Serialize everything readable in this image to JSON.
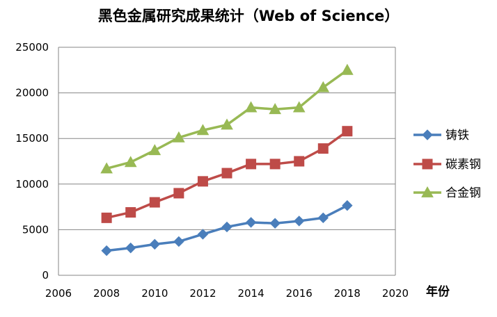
{
  "chart_data": {
    "type": "line",
    "title": "黑色金属研究成果统计（Web of Science）",
    "xlabel": "年份",
    "ylabel": "",
    "xlim": [
      2006,
      2020
    ],
    "ylim": [
      0,
      25000
    ],
    "x_ticks": [
      2006,
      2008,
      2010,
      2012,
      2014,
      2016,
      2018,
      2020
    ],
    "y_ticks": [
      0,
      5000,
      10000,
      15000,
      20000,
      25000
    ],
    "grid": "horizontal",
    "legend_position": "right",
    "x": [
      2008,
      2009,
      2010,
      2011,
      2012,
      2013,
      2014,
      2015,
      2016,
      2017,
      2018
    ],
    "series": [
      {
        "name": "铸铁",
        "color": "#4a7ebb",
        "marker": "diamond",
        "values": [
          2700,
          3000,
          3400,
          3700,
          4500,
          5300,
          5800,
          5700,
          5950,
          6300,
          7650
        ]
      },
      {
        "name": "碳素钢",
        "color": "#be4b48",
        "marker": "square",
        "values": [
          6300,
          6900,
          8000,
          9000,
          10300,
          11200,
          12200,
          12200,
          12500,
          13900,
          15800
        ]
      },
      {
        "name": "合金钢",
        "color": "#98b954",
        "marker": "triangle",
        "values": [
          11700,
          12400,
          13700,
          15100,
          15900,
          16500,
          18400,
          18200,
          18400,
          20600,
          22500
        ]
      }
    ]
  }
}
